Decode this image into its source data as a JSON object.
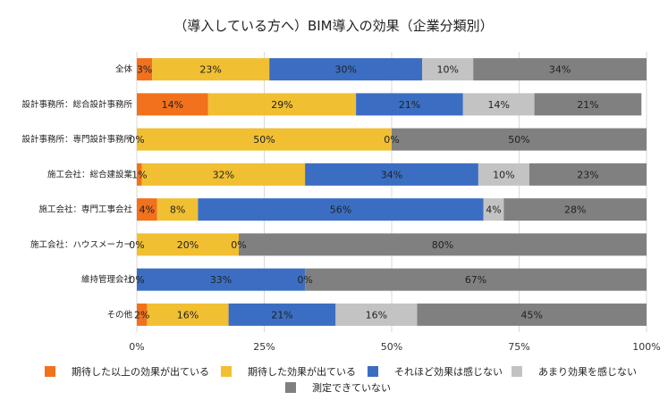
{
  "chart_data": {
    "type": "bar",
    "orientation": "horizontal",
    "stacked": "percent",
    "title": "（導入している方へ）BIM導入の効果（企業分類別）",
    "xlabel": "",
    "ylabel": "",
    "xlim": [
      0,
      100
    ],
    "grid": true,
    "legend_position": "bottom",
    "categories": [
      "全体",
      "設計事務所：総合設計事務所",
      "設計事務所：専門設計事務所",
      "施工会社：総合建設業",
      "施工会社：専門工事会社",
      "施工会社：ハウスメーカー",
      "維持管理会社",
      "その他"
    ],
    "x_ticks": [
      "0%",
      "25%",
      "50%",
      "75%",
      "100%"
    ],
    "series": [
      {
        "name": "期待した以上の効果が出ている",
        "color": "#f2711c",
        "values": [
          3,
          14,
          0,
          1,
          4,
          0,
          0,
          2
        ]
      },
      {
        "name": "期待した効果が出ている",
        "color": "#f1bf32",
        "values": [
          23,
          29,
          50,
          32,
          8,
          20,
          0,
          16
        ]
      },
      {
        "name": "それほど効果は感じない",
        "color": "#3b6ec2",
        "values": [
          30,
          21,
          0,
          34,
          56,
          0,
          33,
          21
        ]
      },
      {
        "name": "あまり効果を感じない",
        "color": "#c3c3c3",
        "values": [
          10,
          14,
          0,
          10,
          4,
          0,
          0,
          16
        ]
      },
      {
        "name": "測定できていない",
        "color": "#808080",
        "values": [
          34,
          21,
          50,
          23,
          28,
          80,
          67,
          45
        ]
      }
    ],
    "data_labels": [
      [
        "3%",
        "23%",
        "30%",
        "10%",
        "34%"
      ],
      [
        "14%",
        "29%",
        "21%",
        "14%",
        "21%"
      ],
      [
        "0%",
        "50%",
        null,
        "0%",
        "50%"
      ],
      [
        "1%",
        "32%",
        "34%",
        "10%",
        "23%"
      ],
      [
        "4%",
        "8%",
        "56%",
        "4%",
        "28%"
      ],
      [
        "0%",
        "20%",
        null,
        "0%",
        "80%"
      ],
      [
        "0%",
        null,
        "33%",
        "0%",
        "67%"
      ],
      [
        "2%",
        "16%",
        "21%",
        "16%",
        "45%"
      ]
    ]
  }
}
